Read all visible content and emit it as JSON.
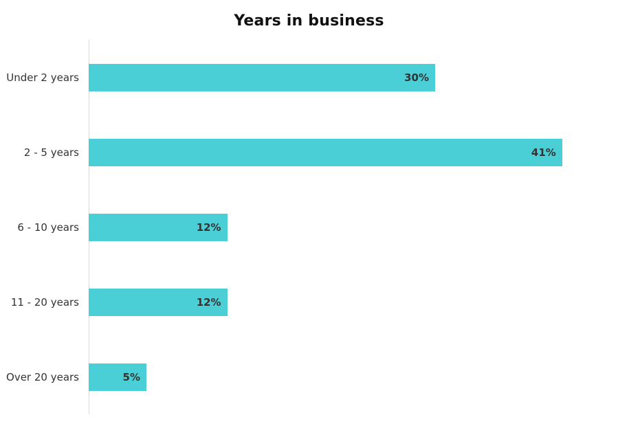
{
  "title": "Years in business",
  "colors": {
    "bar_fill": "#4acfd6",
    "value_text": "#333333",
    "category_text": "#333333",
    "axis_line": "#d9d9d9",
    "title_text": "#111111",
    "background": "#ffffff"
  },
  "chart_data": {
    "type": "bar",
    "orientation": "horizontal",
    "title": "Years in business",
    "xlabel": "",
    "ylabel": "",
    "categories": [
      "Under 2 years",
      "2 - 5 years",
      "6 - 10 years",
      "11 - 20 years",
      "Over 20 years"
    ],
    "values": [
      30,
      41,
      12,
      12,
      5
    ],
    "value_labels": [
      "30%",
      "41%",
      "12%",
      "12%",
      "5%"
    ],
    "value_label_position": "inside-end",
    "xlim": [
      0,
      45
    ],
    "grid": false,
    "legend": false
  }
}
